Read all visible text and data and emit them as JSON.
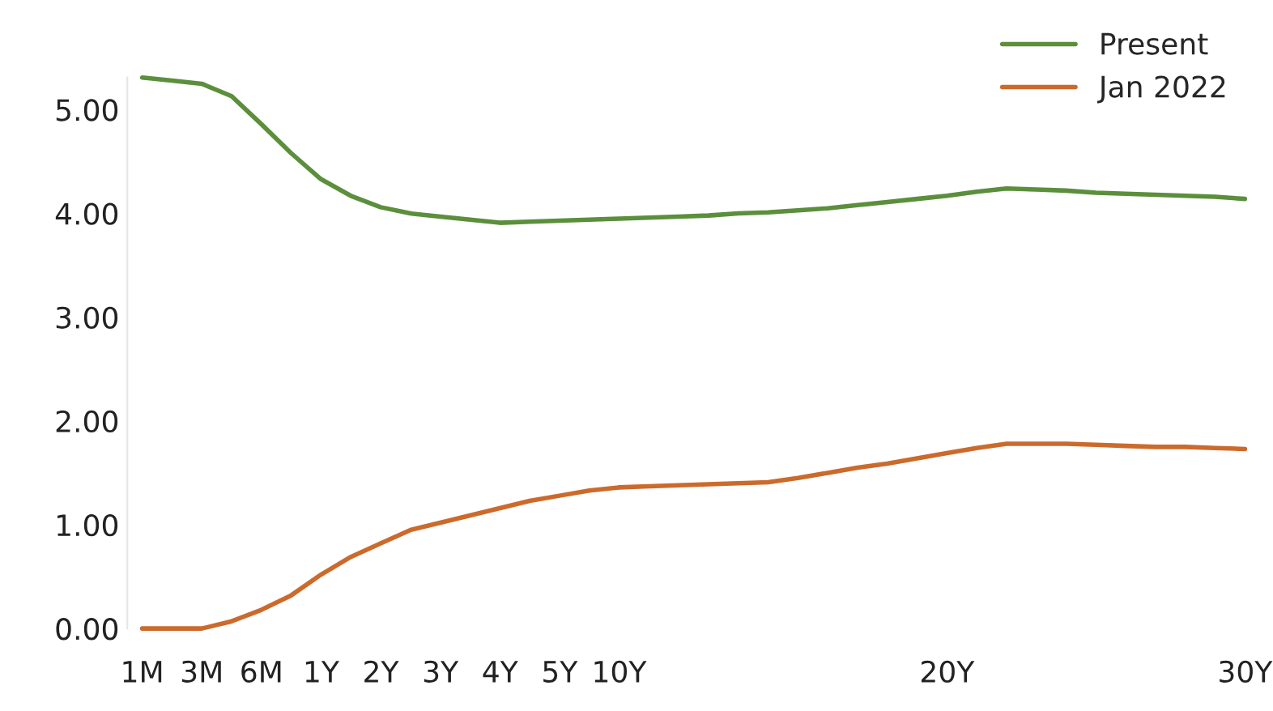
{
  "chart_data": {
    "type": "line",
    "categories": [
      "1M",
      null,
      "3M",
      null,
      "6M",
      null,
      "1Y",
      null,
      "2Y",
      null,
      "3Y",
      null,
      "4Y",
      null,
      "5Y",
      null,
      "10Y",
      null,
      null,
      null,
      null,
      null,
      null,
      null,
      null,
      null,
      null,
      "20Y",
      null,
      null,
      null,
      null,
      null,
      null,
      null,
      null,
      null,
      "30Y"
    ],
    "series": [
      {
        "name": "Present",
        "color": "#5b8f3c",
        "values": [
          5.31,
          5.28,
          5.25,
          5.13,
          4.86,
          4.58,
          4.33,
          4.17,
          4.06,
          4.0,
          3.97,
          3.94,
          3.91,
          3.92,
          3.93,
          3.94,
          3.95,
          3.96,
          3.97,
          3.98,
          4.0,
          4.01,
          4.03,
          4.05,
          4.08,
          4.11,
          4.14,
          4.17,
          4.21,
          4.24,
          4.23,
          4.22,
          4.2,
          4.19,
          4.18,
          4.17,
          4.16,
          4.14
        ]
      },
      {
        "name": "Jan 2022",
        "color": "#cc6a2c",
        "values": [
          0.0,
          0.0,
          0.0,
          0.07,
          0.18,
          0.32,
          0.52,
          0.69,
          0.82,
          0.95,
          1.02,
          1.09,
          1.16,
          1.23,
          1.28,
          1.33,
          1.36,
          1.37,
          1.38,
          1.39,
          1.4,
          1.41,
          1.45,
          1.5,
          1.55,
          1.59,
          1.64,
          1.69,
          1.74,
          1.78,
          1.78,
          1.78,
          1.77,
          1.76,
          1.75,
          1.75,
          1.74,
          1.73
        ]
      }
    ],
    "ylim": [
      0,
      5.31
    ],
    "yticks": [
      {
        "value": 0,
        "label": "0.00"
      },
      {
        "value": 1,
        "label": "1.00"
      },
      {
        "value": 2,
        "label": "2.00"
      },
      {
        "value": 3,
        "label": "3.00"
      },
      {
        "value": 4,
        "label": "4.00"
      },
      {
        "value": 5,
        "label": "5.00"
      }
    ],
    "grid": false,
    "legend": "top right",
    "line_style": "solid",
    "marker": "none"
  }
}
